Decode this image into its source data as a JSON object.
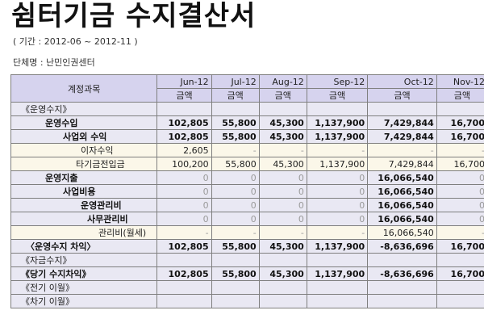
{
  "title": "쉼터기금 수지결산서",
  "period": "( 기간 :  2012-06 ~ 2012-11 )",
  "org": "단체명 : 난민인권센터",
  "table": {
    "account_header": "계정과목",
    "months": [
      "Jun-12",
      "Jul-12",
      "Aug-12",
      "Sep-12",
      "Oct-12",
      "Nov-12"
    ],
    "amount_label": "금액",
    "rows": [
      {
        "label": "《운영수지》",
        "values": [
          "",
          "",
          "",
          "",
          "",
          ""
        ]
      },
      {
        "label": "운영수입",
        "values": [
          "102,805",
          "55,800",
          "45,300",
          "1,137,900",
          "7,429,844",
          "16,700"
        ]
      },
      {
        "label": "사업외 수익",
        "values": [
          "102,805",
          "55,800",
          "45,300",
          "1,137,900",
          "7,429,844",
          "16,700"
        ]
      },
      {
        "label": "이자수익",
        "values": [
          "2,605",
          "-",
          "-",
          "-",
          "-",
          "-"
        ]
      },
      {
        "label": "타기금전입금",
        "values": [
          "100,200",
          "55,800",
          "45,300",
          "1,137,900",
          "7,429,844",
          "16,700"
        ]
      },
      {
        "label": "운영지출",
        "values": [
          "0",
          "0",
          "0",
          "0",
          "16,066,540",
          "0"
        ]
      },
      {
        "label": "사업비용",
        "values": [
          "0",
          "0",
          "0",
          "0",
          "16,066,540",
          "0"
        ]
      },
      {
        "label": "운영관리비",
        "values": [
          "0",
          "0",
          "0",
          "0",
          "16,066,540",
          "0"
        ]
      },
      {
        "label": "사무관리비",
        "values": [
          "0",
          "0",
          "0",
          "0",
          "16,066,540",
          "0"
        ]
      },
      {
        "label": "관리비(월세)",
        "values": [
          "-",
          "-",
          "-",
          "-",
          "16,066,540",
          "-"
        ]
      },
      {
        "label": "〈운영수지 차익〉",
        "values": [
          "102,805",
          "55,800",
          "45,300",
          "1,137,900",
          "-8,636,696",
          "16,700"
        ]
      },
      {
        "label": "《자금수지》",
        "values": [
          "",
          "",
          "",
          "",
          "",
          ""
        ]
      },
      {
        "label": "《당기 수지차익》",
        "values": [
          "102,805",
          "55,800",
          "45,300",
          "1,137,900",
          "-8,636,696",
          "16,700"
        ]
      },
      {
        "label": "《전기 이월》",
        "values": [
          "",
          "",
          "",
          "",
          "",
          ""
        ]
      },
      {
        "label": "《차기 이월》",
        "values": [
          "",
          "",
          "",
          "",
          "",
          ""
        ]
      }
    ]
  }
}
